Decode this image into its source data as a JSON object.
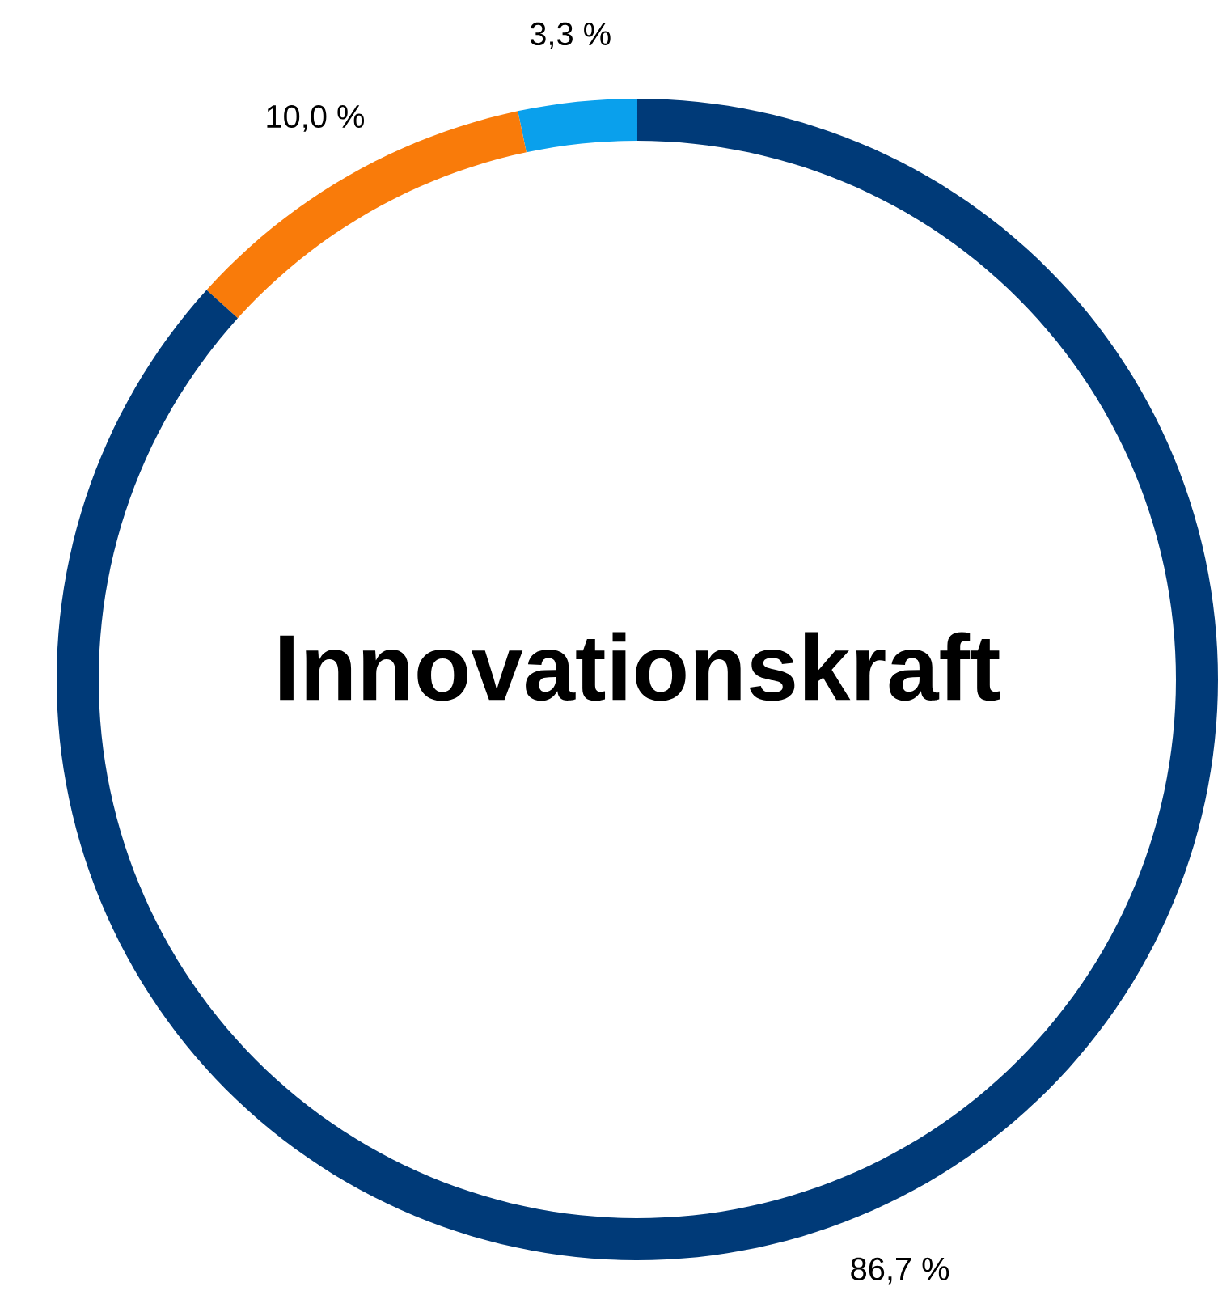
{
  "chart_data": {
    "type": "donut",
    "title": "Innovationskraft",
    "categories": [
      null,
      null,
      null
    ],
    "values": [
      3.3,
      10.0,
      86.7
    ],
    "colors": [
      "#0aa0ec",
      "#f97b0a",
      "#003a78"
    ],
    "value_labels": [
      "3,3 %",
      "10,0 %",
      "86,7 %"
    ]
  }
}
